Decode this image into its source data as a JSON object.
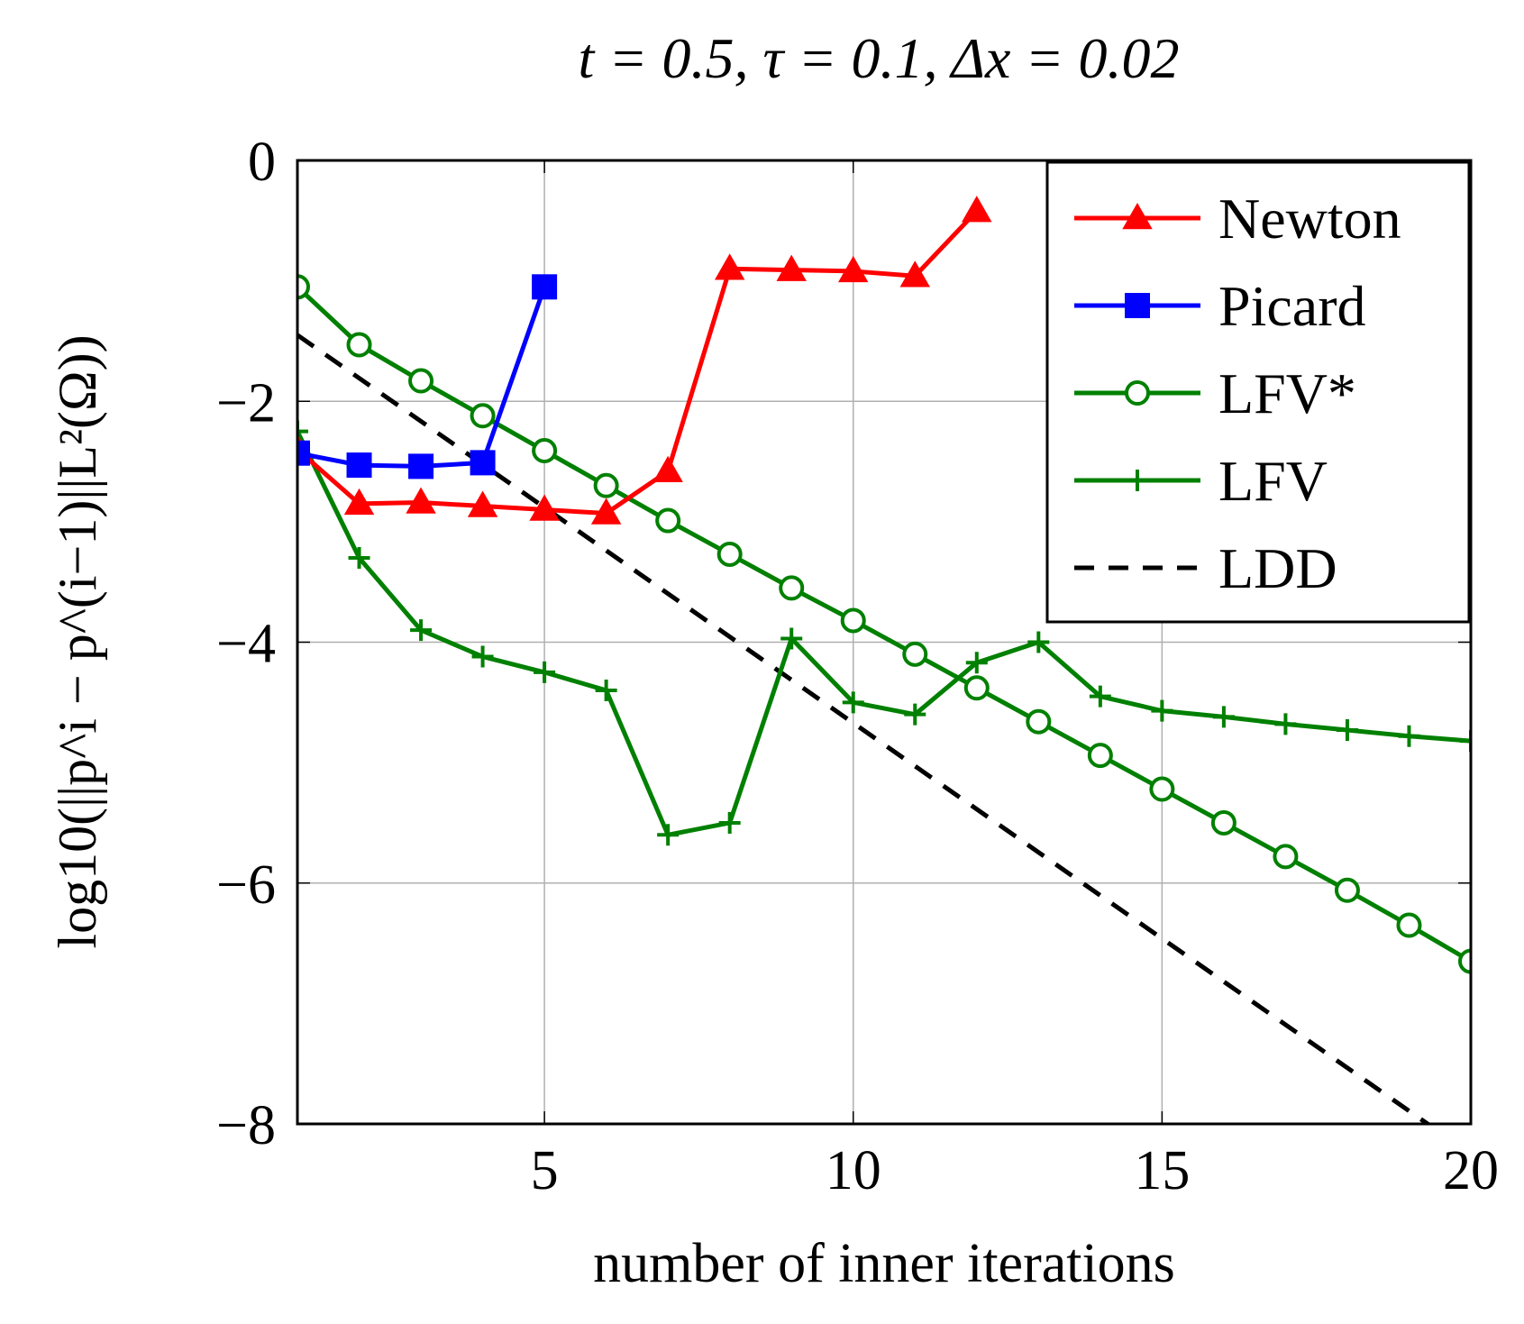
{
  "chart_data": {
    "type": "line",
    "title": "t = 0.5, τ = 0.1, Δx = 0.02",
    "xlabel": "number of inner iterations",
    "ylabel": "log10(||p^i − p^(i−1)||L²(Ω))",
    "xlim": [
      1,
      20
    ],
    "ylim": [
      -8,
      0
    ],
    "xticks": [
      5,
      10,
      15,
      20
    ],
    "xtick_labels": [
      "5",
      "10",
      "15",
      "20"
    ],
    "yticks": [
      0,
      -2,
      -4,
      -6,
      -8
    ],
    "ytick_labels": [
      "0",
      "−2",
      "−4",
      "−6",
      "−8"
    ],
    "grid": true,
    "legend_position": "top-right",
    "series": [
      {
        "name": "Newton",
        "color": "#ff0000",
        "marker": "triangle",
        "dash": false,
        "x": [
          1,
          2,
          3,
          4,
          5,
          6,
          7,
          8,
          9,
          10,
          11,
          12
        ],
        "y": [
          -2.4,
          -2.85,
          -2.84,
          -2.87,
          -2.9,
          -2.93,
          -2.58,
          -0.9,
          -0.91,
          -0.92,
          -0.96,
          -0.42
        ]
      },
      {
        "name": "Picard",
        "color": "#0000ff",
        "marker": "square",
        "dash": false,
        "x": [
          1,
          2,
          3,
          4,
          5
        ],
        "y": [
          -2.43,
          -2.53,
          -2.54,
          -2.51,
          -1.05
        ]
      },
      {
        "name": "LFV*",
        "color": "#008000",
        "marker": "circle",
        "dash": false,
        "x": [
          1,
          2,
          3,
          4,
          5,
          6,
          7,
          8,
          9,
          10,
          11,
          12,
          13,
          14,
          15,
          16,
          17,
          18,
          19,
          20
        ],
        "y": [
          -1.05,
          -1.53,
          -1.83,
          -2.12,
          -2.41,
          -2.7,
          -2.99,
          -3.27,
          -3.55,
          -3.82,
          -4.1,
          -4.38,
          -4.66,
          -4.94,
          -5.22,
          -5.5,
          -5.78,
          -6.06,
          -6.35,
          -6.65
        ]
      },
      {
        "name": "LFV",
        "color": "#008000",
        "marker": "plus",
        "dash": false,
        "x": [
          1,
          2,
          3,
          4,
          5,
          6,
          7,
          8,
          9,
          10,
          11,
          12,
          13,
          14,
          15,
          16,
          17,
          18,
          19,
          20
        ],
        "y": [
          -2.25,
          -3.3,
          -3.9,
          -4.12,
          -4.25,
          -4.4,
          -5.6,
          -5.5,
          -3.97,
          -4.5,
          -4.6,
          -4.17,
          -4.0,
          -4.45,
          -4.57,
          -4.62,
          -4.68,
          -4.73,
          -4.78,
          -4.82
        ]
      },
      {
        "name": "LDD",
        "color": "#000000",
        "marker": "none",
        "dash": true,
        "x": [
          1,
          20
        ],
        "y": [
          -1.45,
          -8.25
        ]
      }
    ]
  }
}
